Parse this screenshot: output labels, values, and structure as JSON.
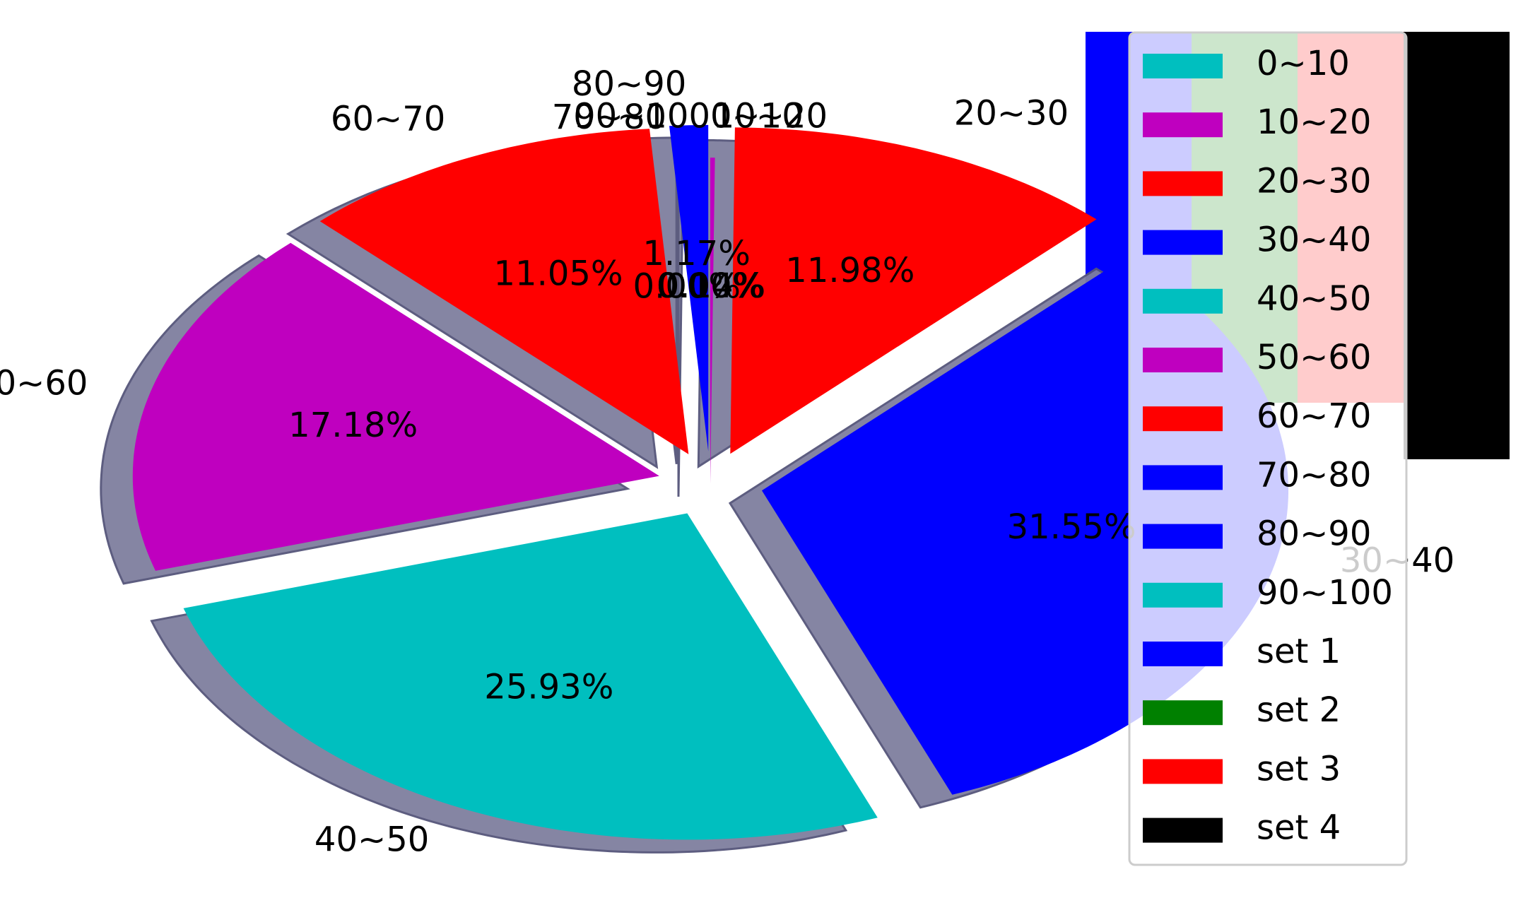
{
  "chart_data": [
    {
      "type": "pie",
      "title": "",
      "shadow": true,
      "categories": [
        "0~10",
        "10~20",
        "20~30",
        "30~40",
        "40~50",
        "50~60",
        "60~70",
        "70~80",
        "80~90",
        "90~100"
      ],
      "values": [
        0.0,
        0.14,
        11.98,
        31.55,
        25.93,
        17.18,
        11.05,
        0.0,
        1.17,
        0.0
      ],
      "percent_labels": [
        "0.00%",
        "0.14%",
        "11.98%",
        "31.55%",
        "25.93%",
        "17.18%",
        "11.05%",
        "0.00%",
        "1.17%",
        "0.00%"
      ],
      "colors": [
        "#00bfbf",
        "#bf00bf",
        "#ff0000",
        "#0000ff",
        "#00bfbf",
        "#bf00bf",
        "#ff0000",
        "#0000ff",
        "#0000ff",
        "#00bfbf"
      ],
      "explode": [
        0,
        0,
        0.1,
        0.1,
        0.1,
        0.1,
        0.1,
        0,
        0.1,
        0
      ]
    },
    {
      "type": "bar",
      "title": "",
      "series": [
        {
          "name": "set 1",
          "color": "#0000ff",
          "values": [
            1
          ]
        },
        {
          "name": "set 2",
          "color": "#008000",
          "values": [
            1
          ]
        },
        {
          "name": "set 3",
          "color": "#ff0000",
          "values": [
            1
          ]
        },
        {
          "name": "set 4",
          "color": "#000000",
          "values": [
            1
          ]
        }
      ]
    }
  ],
  "legend": {
    "placement": "upper right",
    "entries": [
      {
        "label": "0~10",
        "color": "#00bfbf"
      },
      {
        "label": "10~20",
        "color": "#bf00bf"
      },
      {
        "label": "20~30",
        "color": "#ff0000"
      },
      {
        "label": "30~40",
        "color": "#0000ff"
      },
      {
        "label": "40~50",
        "color": "#00bfbf"
      },
      {
        "label": "50~60",
        "color": "#bf00bf"
      },
      {
        "label": "60~70",
        "color": "#ff0000"
      },
      {
        "label": "70~80",
        "color": "#0000ff"
      },
      {
        "label": "80~90",
        "color": "#0000ff"
      },
      {
        "label": "90~100",
        "color": "#00bfbf"
      },
      {
        "label": "set 1",
        "color": "#0000ff"
      },
      {
        "label": "set 2",
        "color": "#008000"
      },
      {
        "label": "set 3",
        "color": "#ff0000"
      },
      {
        "label": "set 4",
        "color": "#000000"
      }
    ]
  }
}
